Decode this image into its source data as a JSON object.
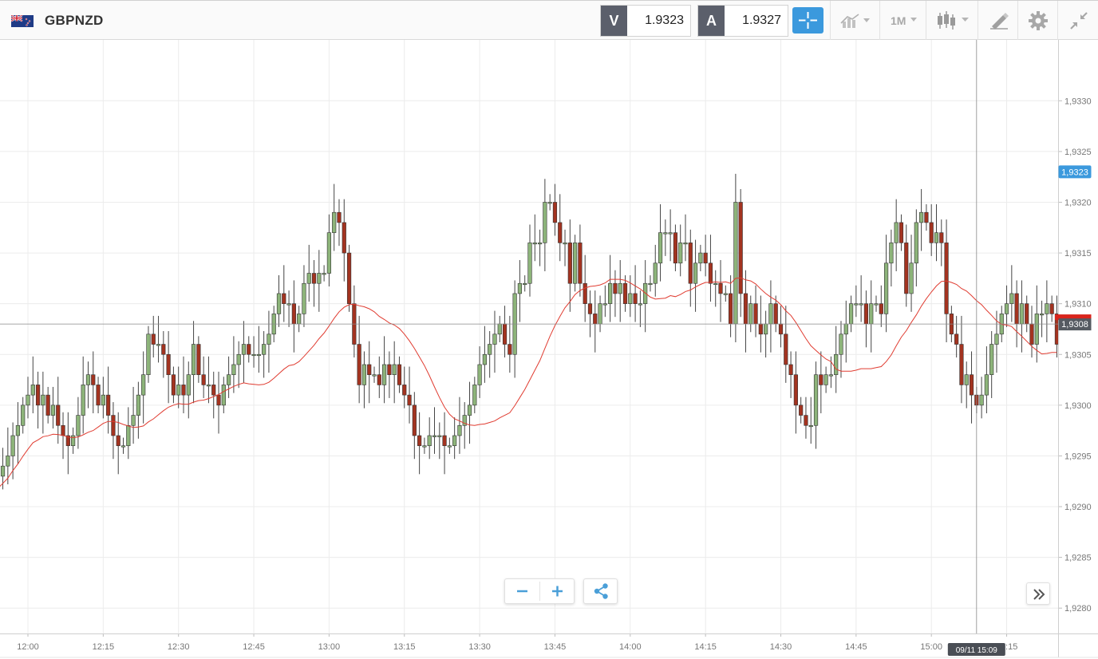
{
  "header": {
    "symbol": "GBPNZD",
    "bid": {
      "letter": "V",
      "value": "1.9323"
    },
    "ask": {
      "letter": "A",
      "value": "1.9327"
    },
    "timeframe": "1M"
  },
  "icons": {
    "flag": "uk-nz-flag-icon",
    "crosshair": "crosshair-icon",
    "indicators": "indicator-chart-icon",
    "chart_type": "candlestick-icon",
    "drawing": "drawing-tools-icon",
    "settings": "gear-icon",
    "collapse": "collapse-icon",
    "zoom_out": "minus-icon",
    "zoom_in": "plus-icon",
    "share": "share-icon",
    "forward": "double-chevron-right-icon"
  },
  "colors": {
    "up": "#8db47a",
    "down": "#a33320",
    "ma": "#e03c31",
    "accent": "#3b99dd",
    "current_price_tag": "#3b99dd",
    "crosshair_price_tag": "#555a61",
    "crosshair_time_tag": "#4a4e55",
    "last_marker": "#d9251c"
  },
  "chart_data": {
    "type": "candlestick",
    "symbol": "GBPNZD",
    "timeframe": "1M",
    "ylim": [
      1.92775,
      1.9336
    ],
    "y_ticks": [
      "1,9330",
      "1,9325",
      "1,9320",
      "1,9315",
      "1,9310",
      "1,9305",
      "1,9300",
      "1,9295",
      "1,9290",
      "1,9285",
      "1,9280"
    ],
    "y_tick_values": [
      1.933,
      1.9325,
      1.932,
      1.9315,
      1.931,
      1.9305,
      1.93,
      1.9295,
      1.929,
      1.9285,
      1.928
    ],
    "x_ticks": [
      "12:00",
      "12:15",
      "12:30",
      "12:45",
      "13:00",
      "13:15",
      "13:30",
      "13:45",
      "14:00",
      "14:15",
      "14:30",
      "14:45",
      "15:00",
      "15:15"
    ],
    "x_tick_minutes": [
      720,
      735,
      750,
      765,
      780,
      795,
      810,
      825,
      840,
      855,
      870,
      885,
      900,
      915
    ],
    "start_minute": 714,
    "current_price_label": "1,9323",
    "current_price": 1.9323,
    "crosshair_price_label": "1,9308",
    "crosshair_price": 1.9308,
    "crosshair_time_label": "09/11 15:09",
    "crosshair_minute": 909,
    "closes": [
      1.9293,
      1.9294,
      1.9295,
      1.9297,
      1.9298,
      1.93,
      1.9301,
      1.9302,
      1.93,
      1.9301,
      1.9299,
      1.93,
      1.9298,
      1.9297,
      1.9296,
      1.9297,
      1.9299,
      1.9302,
      1.9303,
      1.9302,
      1.93,
      1.9301,
      1.9299,
      1.9297,
      1.9296,
      1.9296,
      1.9298,
      1.9299,
      1.9301,
      1.9303,
      1.9307,
      1.9306,
      1.9306,
      1.9305,
      1.9303,
      1.9301,
      1.9302,
      1.9301,
      1.9303,
      1.9306,
      1.9303,
      1.9302,
      1.9302,
      1.9301,
      1.93,
      1.9302,
      1.9303,
      1.9304,
      1.9305,
      1.9306,
      1.9305,
      1.9305,
      1.9305,
      1.9306,
      1.9307,
      1.9309,
      1.9311,
      1.931,
      1.931,
      1.9308,
      1.9309,
      1.9312,
      1.9313,
      1.9312,
      1.9313,
      1.9313,
      1.9317,
      1.9319,
      1.9318,
      1.9315,
      1.931,
      1.9306,
      1.9302,
      1.9304,
      1.9303,
      1.9303,
      1.9302,
      1.9304,
      1.9303,
      1.9304,
      1.9302,
      1.9301,
      1.93,
      1.9297,
      1.9296,
      1.9296,
      1.9297,
      1.9297,
      1.9297,
      1.9296,
      1.9296,
      1.9297,
      1.9298,
      1.9299,
      1.93,
      1.9302,
      1.9304,
      1.9305,
      1.9306,
      1.9307,
      1.9308,
      1.9306,
      1.9305,
      1.9311,
      1.9312,
      1.9312,
      1.9316,
      1.9316,
      1.9316,
      1.932,
      1.932,
      1.9318,
      1.9316,
      1.9316,
      1.9312,
      1.9316,
      1.9312,
      1.931,
      1.9309,
      1.9308,
      1.931,
      1.931,
      1.9312,
      1.9311,
      1.9312,
      1.931,
      1.9311,
      1.931,
      1.931,
      1.9312,
      1.9312,
      1.9314,
      1.9317,
      1.9317,
      1.9317,
      1.9314,
      1.9316,
      1.9316,
      1.9312,
      1.9314,
      1.9315,
      1.9314,
      1.9312,
      1.9312,
      1.9311,
      1.9311,
      1.9308,
      1.932,
      1.9311,
      1.9308,
      1.931,
      1.9308,
      1.9307,
      1.9308,
      1.931,
      1.9308,
      1.9307,
      1.9304,
      1.9303,
      1.93,
      1.9299,
      1.9298,
      1.9298,
      1.9303,
      1.9302,
      1.9303,
      1.9303,
      1.9305,
      1.9307,
      1.9308,
      1.931,
      1.931,
      1.931,
      1.9308,
      1.931,
      1.931,
      1.9309,
      1.9314,
      1.9316,
      1.9318,
      1.9316,
      1.9311,
      1.9314,
      1.9318,
      1.9319,
      1.9318,
      1.9316,
      1.9317,
      1.9316,
      1.9309,
      1.9307,
      1.9306,
      1.9302,
      1.9303,
      1.9301,
      1.93,
      1.9301,
      1.9303,
      1.9306,
      1.9307,
      1.9309,
      1.931,
      1.9311,
      1.9308,
      1.931,
      1.9308,
      1.9306,
      1.9309,
      1.9309,
      1.931,
      1.9309,
      1.9306
    ],
    "ma_period": 20
  }
}
